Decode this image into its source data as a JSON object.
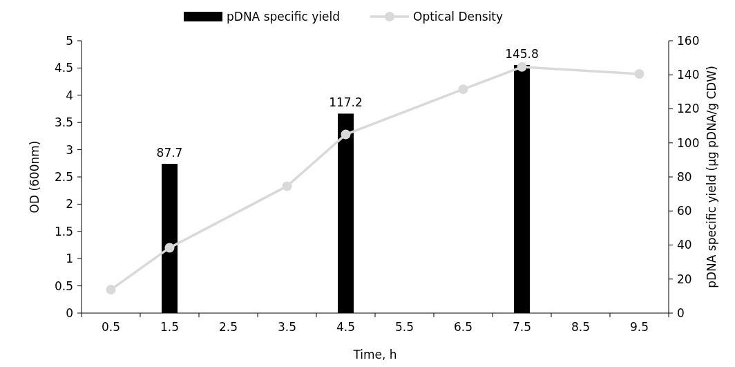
{
  "chart_data": {
    "type": "bar",
    "xlabel": "Time, h",
    "ylabel": "OD (600nm)",
    "y2label": "pDNA specific yield  (µg pDNA/g CDW)",
    "categories": [
      "0.5",
      "1.5",
      "2.5",
      "3.5",
      "4.5",
      "5.5",
      "6.5",
      "7.5",
      "8.5",
      "9.5"
    ],
    "series": [
      {
        "name": "pDNA specific yield",
        "axis": "y2",
        "color": "#000000",
        "values": [
          null,
          87.7,
          null,
          null,
          117.2,
          null,
          null,
          145.8,
          null,
          null
        ],
        "value_labels": [
          null,
          "87.7",
          null,
          null,
          "117.2",
          null,
          null,
          "145.8",
          null,
          null
        ]
      },
      {
        "name": "Optical Density",
        "type": "line",
        "color": "#d9d9d9",
        "marker": "circle",
        "x": [
          "0.5",
          "1.5",
          "3.5",
          "4.5",
          "6.5",
          "7.5",
          "9.5"
        ],
        "values": [
          0.43,
          1.2,
          2.33,
          3.28,
          4.11,
          4.52,
          4.39
        ]
      }
    ],
    "ylim": [
      0,
      5
    ],
    "yticks": [
      0,
      0.5,
      1,
      1.5,
      2,
      2.5,
      3,
      3.5,
      4,
      4.5,
      5
    ],
    "y2lim": [
      0,
      160
    ],
    "y2ticks": [
      0,
      20,
      40,
      60,
      80,
      100,
      120,
      140,
      160
    ],
    "grid": false,
    "legend": "top"
  }
}
